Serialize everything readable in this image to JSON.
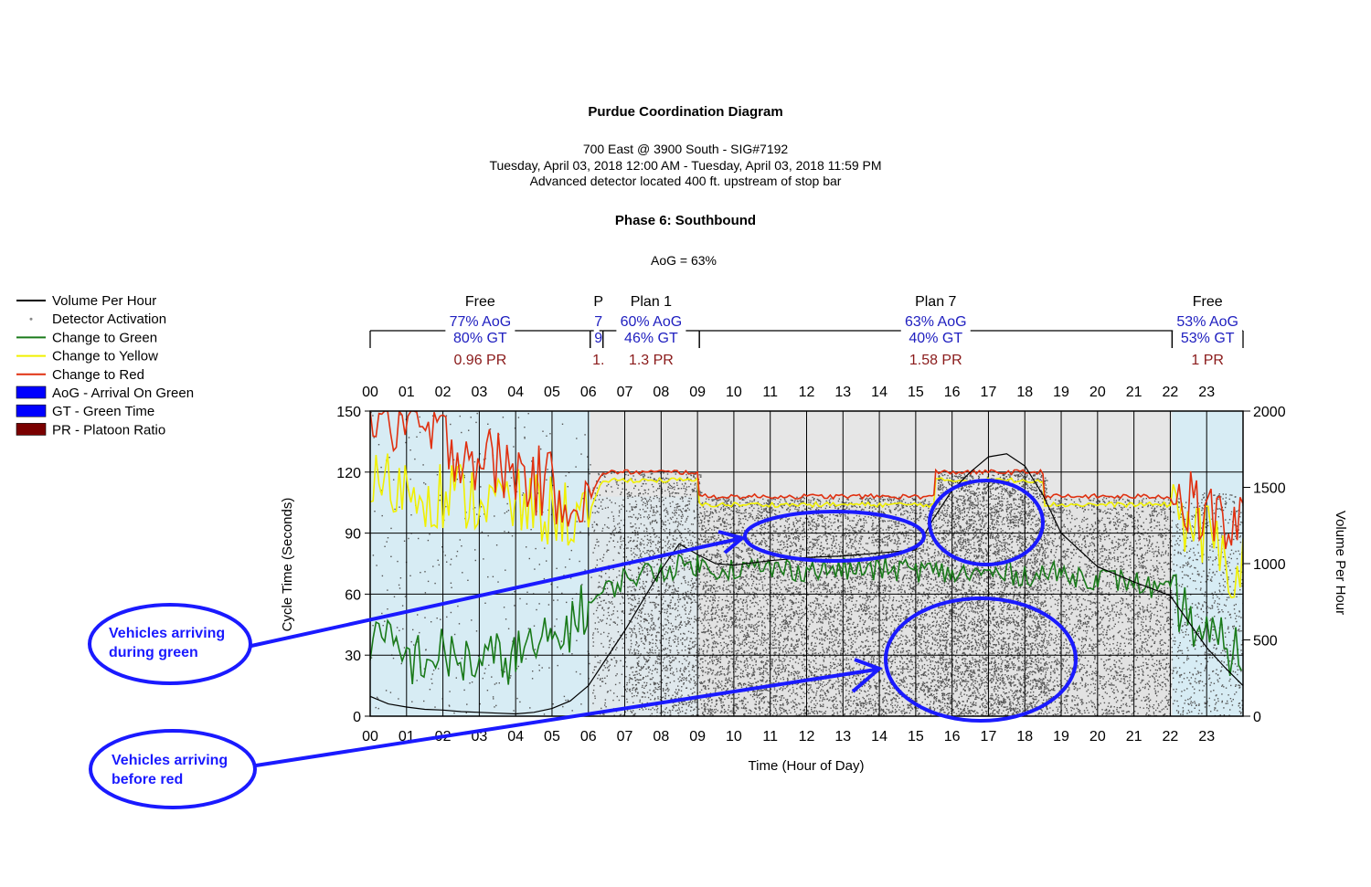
{
  "colors": {
    "green_bg": "#d7ecf4",
    "red_bg": "#e6e6e6",
    "volume": "#000000",
    "detector": "#555555",
    "change_green": "#1a7a1a",
    "change_yellow": "#f0f000",
    "change_red": "#e03010",
    "callout": "#1a1aff"
  },
  "header": {
    "title": "Purdue Coordination Diagram",
    "location": "700 East @ 3900 South - SIG#7192",
    "date_range": "Tuesday, April 03, 2018 12:00 AM - Tuesday, April 03, 2018 11:59 PM",
    "detector_note": "Advanced detector located 400 ft. upstream of stop bar",
    "phase": "Phase 6: Southbound",
    "aog_total": "AoG = 63%"
  },
  "legend": [
    {
      "label": "Volume Per Hour",
      "icon": "black-line-icon"
    },
    {
      "label": "Detector Activation",
      "icon": "gray-dot-icon"
    },
    {
      "label": "Change to Green",
      "icon": "green-line-icon"
    },
    {
      "label": "Change to Yellow",
      "icon": "yellow-line-icon"
    },
    {
      "label": "Change to Red",
      "icon": "red-line-icon"
    },
    {
      "label": "AoG - Arrival On Green",
      "icon": "blue-box-icon"
    },
    {
      "label": "GT - Green Time",
      "icon": "blue-box-icon"
    },
    {
      "label": "PR - Platoon Ratio",
      "icon": "darkred-box-icon"
    }
  ],
  "callouts": [
    {
      "text_line1": "Vehicles arriving",
      "text_line2": "during green"
    },
    {
      "text_line1": "Vehicles arriving",
      "text_line2": "before red"
    }
  ],
  "chart_data": {
    "type": "line",
    "title": "Purdue Coordination Diagram",
    "xlabel": "Time (Hour of Day)",
    "ylabel": "Cycle Time (Seconds)",
    "y2label": "Volume Per Hour",
    "xlim": [
      0,
      24
    ],
    "ylim": [
      0,
      150
    ],
    "y2lim": [
      0,
      2000
    ],
    "x_ticks": [
      "00",
      "01",
      "02",
      "03",
      "04",
      "05",
      "06",
      "07",
      "08",
      "09",
      "10",
      "11",
      "12",
      "13",
      "14",
      "15",
      "16",
      "17",
      "18",
      "19",
      "20",
      "21",
      "22",
      "23"
    ],
    "y_ticks": [
      "0",
      "30",
      "60",
      "90",
      "120",
      "150"
    ],
    "y2_ticks": [
      "0",
      "500",
      "1000",
      "1500",
      "2000"
    ],
    "grid": true,
    "legend_position": "left",
    "plans": [
      {
        "name": "Free",
        "start": 0,
        "end": 6.05,
        "aog": "77% AoG",
        "gt": "80% GT",
        "pr": "0.96 PR"
      },
      {
        "name": "P",
        "start": 6.05,
        "end": 6.4,
        "aog": "7",
        "gt": "9",
        "pr": "1."
      },
      {
        "name": "Plan 1",
        "start": 6.4,
        "end": 9.05,
        "aog": "60% AoG",
        "gt": "46% GT",
        "pr": "1.3 PR"
      },
      {
        "name": "Plan 7",
        "start": 9.05,
        "end": 22.05,
        "aog": "63% AoG",
        "gt": "40% GT",
        "pr": "1.58 PR"
      },
      {
        "name": "Free",
        "start": 22.05,
        "end": 24,
        "aog": "53% AoG",
        "gt": "53% GT",
        "pr": "1 PR"
      }
    ],
    "series": [
      {
        "name": "Volume Per Hour",
        "axis": "right",
        "x": [
          0,
          0.5,
          1,
          1.5,
          2,
          2.5,
          3,
          3.5,
          4,
          4.5,
          5,
          5.5,
          6,
          6.5,
          7,
          7.5,
          8,
          8.5,
          9,
          9.5,
          10,
          11,
          12,
          13,
          14,
          15,
          15.5,
          16,
          16.5,
          17,
          17.5,
          18,
          18.5,
          19,
          20,
          21,
          22,
          22.5,
          23,
          23.5,
          24
        ],
        "values": [
          130,
          80,
          60,
          45,
          40,
          30,
          25,
          20,
          15,
          25,
          50,
          100,
          200,
          380,
          560,
          760,
          960,
          1130,
          1060,
          1000,
          990,
          1020,
          1040,
          1050,
          1070,
          1090,
          1300,
          1480,
          1600,
          1700,
          1720,
          1640,
          1450,
          1200,
          980,
          880,
          790,
          620,
          450,
          320,
          200
        ]
      },
      {
        "name": "Change to Red",
        "axis": "left",
        "x": [
          0,
          6,
          6.4,
          7,
          9,
          9.05,
          15.5,
          15.55,
          18.5,
          18.55,
          22,
          24
        ],
        "values": [
          150,
          105,
          120,
          120,
          120,
          108,
          108,
          120,
          120,
          108,
          108,
          90
        ]
      },
      {
        "name": "Change to Yellow",
        "axis": "left",
        "x": [
          0,
          6,
          6.4,
          7,
          9,
          9.05,
          15.5,
          15.55,
          18.5,
          18.55,
          22,
          24
        ],
        "values": [
          115,
          98,
          116,
          116,
          116,
          104,
          104,
          116,
          116,
          104,
          104,
          70
        ]
      },
      {
        "name": "Change to Green",
        "axis": "left",
        "x": [
          0,
          1,
          2,
          3,
          4,
          5,
          6,
          7,
          8,
          9,
          9.05,
          12,
          15,
          16,
          18,
          19,
          20,
          21,
          22,
          23,
          24
        ],
        "values": [
          40,
          28,
          30,
          26,
          30,
          36,
          55,
          68,
          72,
          75,
          73,
          72,
          72,
          70,
          70,
          70,
          68,
          66,
          60,
          38,
          30
        ]
      }
    ]
  }
}
